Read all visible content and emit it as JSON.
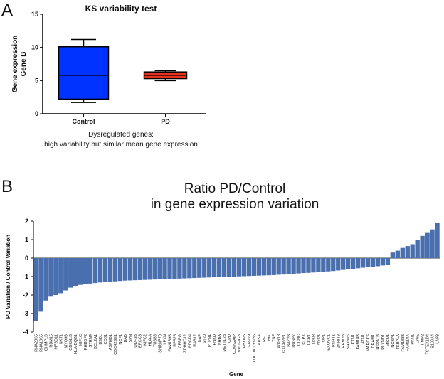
{
  "chart_data": [
    {
      "type": "box",
      "panel": "A",
      "title": "KS variability test",
      "ylabel": [
        "Gene expression",
        "Gene B"
      ],
      "annotations": [
        "Dysregulated genes:",
        "high variability but similar mean gene expression"
      ],
      "categories": [
        "Control",
        "PD"
      ],
      "series": [
        {
          "name": "Control",
          "color": "#0033ff",
          "min": 1.7,
          "q1": 2.2,
          "median": 5.8,
          "q3": 10.1,
          "max": 11.2
        },
        {
          "name": "PD",
          "color": "#e8321e",
          "min": 5.0,
          "q1": 5.3,
          "median": 5.8,
          "q3": 6.3,
          "max": 6.5
        }
      ],
      "ylim": [
        0,
        15
      ],
      "yticks": [
        0,
        5,
        10,
        15
      ]
    },
    {
      "type": "bar",
      "panel": "B",
      "title": [
        "Ratio PD/Control",
        "in gene expression variation"
      ],
      "ylabel": "PD Variation / Control Variation",
      "xlabel": "Gene",
      "color": "#4a6fae",
      "ylim": [
        -4,
        2
      ],
      "yticks": [
        -4,
        -3,
        -2,
        -1,
        0,
        1,
        2
      ],
      "categories": [
        "RNA28S5",
        "RNA18S5",
        "CHMP1B",
        "RBM15",
        "MFSD11",
        "NXT1",
        "MYO9B",
        "CDKN1B",
        "HLA-DQB1",
        "KIF1C",
        "RHBDF2",
        "STRN4",
        "BCL2A1",
        "BSDL",
        "CD81",
        "ASPHD1",
        "CDC42SE1",
        "NCF1",
        "BAD",
        "SPN",
        "ODF3B",
        "ERCC8",
        "KIFC2",
        "HLA-A",
        "TUBB6",
        "SNRNP70",
        "LPXN",
        "FAM189B",
        "RPS28",
        "CEBPG",
        "ZDHHC12",
        "PDCD4",
        "RAB12",
        "DAP",
        "ST20",
        "PTPN1",
        "PNKD",
        "INHBA",
        "METTL23",
        "CPD",
        "CDKN2AIP",
        "NDUFAF3",
        "FBXW5",
        "ERP29",
        "LOC100133286",
        "ARSA",
        "REL",
        "BIK",
        "TNF",
        "WDR13",
        "CXCR2P1",
        "BAZ2B",
        "DUSP7",
        "CCNC",
        "CLPX",
        "CCR1",
        "LDLR",
        "NSD1",
        "TOP1",
        "EXOSC1",
        "PNPT1",
        "ZNHIT3",
        "RRM2B",
        "SH3BP5",
        "KTN1",
        "FAM18B",
        "ATN1",
        "MARCKS",
        "DRAM1",
        "HSPA1B",
        "PLXND1",
        "MICU1",
        "NCBP1",
        "FKBP1A",
        "FAM188B",
        "FAM118A",
        "PKN1",
        "LY6E",
        "TIMP2",
        "TCTEX1D4",
        "S100A4",
        "LAP3"
      ],
      "values": [
        -3.4,
        -2.9,
        -2.3,
        -2.05,
        -2.0,
        -1.9,
        -1.75,
        -1.6,
        -1.5,
        -1.45,
        -1.42,
        -1.38,
        -1.35,
        -1.32,
        -1.3,
        -1.28,
        -1.26,
        -1.24,
        -1.22,
        -1.21,
        -1.2,
        -1.19,
        -1.18,
        -1.17,
        -1.16,
        -1.15,
        -1.14,
        -1.13,
        -1.12,
        -1.11,
        -1.1,
        -1.09,
        -1.08,
        -1.07,
        -1.06,
        -1.05,
        -1.04,
        -1.03,
        -1.02,
        -1.01,
        -1.0,
        -0.99,
        -0.98,
        -0.97,
        -0.96,
        -0.95,
        -0.94,
        -0.93,
        -0.92,
        -0.9,
        -0.89,
        -0.87,
        -0.85,
        -0.83,
        -0.81,
        -0.8,
        -0.78,
        -0.76,
        -0.74,
        -0.72,
        -0.7,
        -0.67,
        -0.64,
        -0.61,
        -0.58,
        -0.55,
        -0.52,
        -0.5,
        -0.47,
        -0.44,
        -0.4,
        -0.35,
        0.3,
        0.4,
        0.55,
        0.65,
        0.75,
        1.0,
        1.2,
        1.4,
        1.55,
        1.9
      ]
    }
  ]
}
